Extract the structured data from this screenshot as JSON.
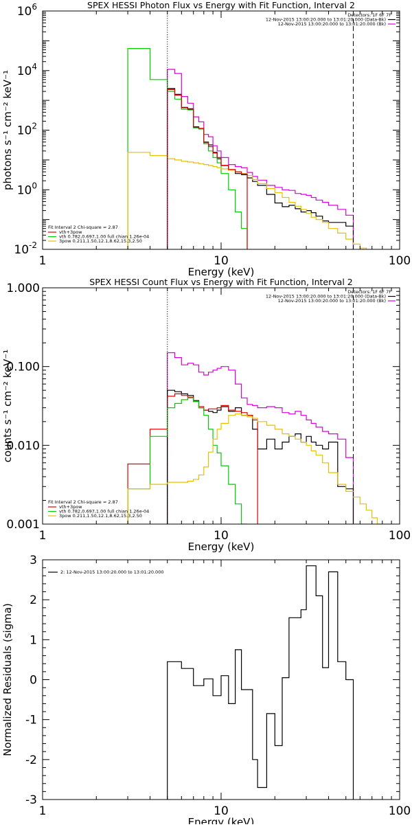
{
  "chart_data": [
    {
      "type": "line",
      "step": true,
      "title": "SPEX HESSI Photon Flux vs Energy with Fit Function, Interval 2",
      "xlabel": "Energy (keV)",
      "ylabel": "photons s⁻¹ cm⁻² keV⁻¹",
      "xscale": "log",
      "yscale": "log",
      "xlim": [
        1,
        100
      ],
      "ylim": [
        0.01,
        1000000
      ],
      "x_tick_labels": [
        "1",
        "10",
        "100"
      ],
      "y_ticks": [
        {
          "base": "10",
          "exp": "-2",
          "value": 0.01
        },
        {
          "base": "10",
          "exp": "0",
          "value": 1
        },
        {
          "base": "10",
          "exp": "2",
          "value": 100
        },
        {
          "base": "10",
          "exp": "4",
          "value": 10000
        },
        {
          "base": "10",
          "exp": "6",
          "value": 1000000
        }
      ],
      "vlines": [
        {
          "x": 5.0,
          "style": "dotted"
        },
        {
          "x": 55.0,
          "style": "dashed"
        }
      ],
      "legend_top": {
        "placement": "top-right",
        "lines": [
          {
            "text": "Detectors: 1F 6F 7F",
            "color": "#000000"
          },
          {
            "text": "12-Nov-2015 13:00:20.000 to 13:01:20.000 (Data-Bk)",
            "color": "#000000"
          },
          {
            "text": "12-Nov-2015 13:00:20.000 to 13:01:20.000 (Bk)",
            "color": "#d800d8"
          }
        ]
      },
      "legend_fit": {
        "placement": "bottom-left",
        "header": "Fit Interval 2   Chi-square = 2.87",
        "entries": [
          {
            "label": "vth+3pow",
            "color": "#dd0000"
          },
          {
            "label": "vth 0.782,0.697,1.00  full chian 1.26e-04",
            "color": "#00cc00"
          },
          {
            "label": "3pow 0.211,1.50,12.1,8.62,15.3,2.50",
            "color": "#e6c000"
          }
        ]
      },
      "series": [
        {
          "color": "#000000",
          "edges": [
            5,
            5.5,
            6,
            6.5,
            7,
            7.5,
            8,
            8.5,
            9,
            9.5,
            10,
            11,
            12,
            13,
            14,
            15,
            16,
            18,
            20,
            22,
            24,
            26,
            28,
            30,
            32,
            34,
            37,
            40,
            45,
            50,
            55
          ],
          "values": [
            2500,
            1600,
            580,
            520,
            130,
            110,
            40,
            32,
            18,
            11,
            6.5,
            4.5,
            3.5,
            3.2,
            2.5,
            1.9,
            1.4,
            0.7,
            0.36,
            0.27,
            0.3,
            0.23,
            0.18,
            0.2,
            0.17,
            0.13,
            0.09,
            0.08,
            0.08,
            0.06
          ]
        },
        {
          "color": "#d800d8",
          "edges": [
            5,
            5.5,
            6,
            6.5,
            7,
            7.5,
            8,
            8.5,
            9,
            9.5,
            10,
            11,
            12,
            13,
            14,
            15,
            16,
            18,
            20,
            22,
            24,
            26,
            28,
            30,
            32,
            34,
            37,
            40,
            45,
            50,
            55
          ],
          "values": [
            11000,
            8000,
            1350,
            800,
            280,
            190,
            72,
            60,
            30,
            20,
            12,
            7,
            6,
            5.5,
            3.8,
            2.8,
            2.1,
            1.4,
            1.2,
            1.0,
            0.95,
            0.75,
            0.7,
            0.65,
            0.55,
            0.45,
            0.38,
            0.3,
            0.22,
            0.14
          ]
        },
        {
          "color": "#00cc00",
          "edges": [
            3,
            4,
            5,
            5.5,
            6,
            6.5,
            7,
            7.5,
            8,
            8.5,
            9,
            9.5,
            10,
            11,
            12,
            13,
            14
          ],
          "values": [
            55000,
            5000,
            2000,
            1100,
            500,
            480,
            120,
            110,
            35,
            20,
            12,
            8,
            3.5,
            1.0,
            0.18,
            0.05
          ]
        },
        {
          "color": "#e6c000",
          "edges": [
            3,
            4,
            5,
            5.5,
            6,
            6.5,
            7,
            7.5,
            8,
            8.5,
            9,
            9.5,
            10,
            11,
            12,
            13,
            14,
            15,
            16,
            18,
            20,
            22,
            24,
            26,
            28,
            30,
            32,
            34,
            37,
            40,
            45,
            50,
            55,
            60,
            65
          ],
          "values": [
            18,
            14,
            11,
            10,
            9,
            8.5,
            8,
            7.5,
            7,
            6.5,
            6,
            5.5,
            5,
            4.5,
            4,
            3.5,
            3,
            2.2,
            1.6,
            1.1,
            0.8,
            0.55,
            0.38,
            0.28,
            0.22,
            0.16,
            0.12,
            0.1,
            0.08,
            0.05,
            0.035,
            0.022,
            0.015,
            0.011
          ]
        },
        {
          "color": "#dd0000",
          "edges": [
            5,
            5.5,
            6,
            6.5,
            7,
            7.5,
            8,
            8.5,
            9,
            9.5,
            10,
            11,
            12,
            13,
            14
          ],
          "values": [
            2300,
            1500,
            560,
            500,
            125,
            115,
            38,
            28,
            17,
            12,
            6.6,
            4.8,
            4,
            3.4
          ]
        }
      ]
    },
    {
      "type": "line",
      "step": true,
      "title": "SPEX HESSI Count Flux vs Energy with Fit Function, Interval 2",
      "xlabel": "Energy (keV)",
      "ylabel": "counts s⁻¹ cm⁻² keV⁻¹",
      "xscale": "log",
      "yscale": "log",
      "xlim": [
        1,
        100
      ],
      "ylim": [
        0.001,
        1
      ],
      "x_tick_labels": [
        "1",
        "10",
        "100"
      ],
      "y_ticks": [
        {
          "label": "0.001",
          "value": 0.001
        },
        {
          "label": "0.010",
          "value": 0.01
        },
        {
          "label": "0.100",
          "value": 0.1
        },
        {
          "label": "1.000",
          "value": 1
        }
      ],
      "vlines": [
        {
          "x": 5.0,
          "style": "dotted"
        },
        {
          "x": 55.0,
          "style": "dashed"
        }
      ],
      "legend_top": {
        "placement": "top-right",
        "lines": [
          {
            "text": "Detectors: 1F 6F 7F",
            "color": "#000000"
          },
          {
            "text": "12-Nov-2015 13:00:20.000 to 13:01:20.000 (Data-Bk)",
            "color": "#000000"
          },
          {
            "text": "12-Nov-2015 13:00:20.000 to 13:01:20.000 (Bk)",
            "color": "#d800d8"
          }
        ]
      },
      "legend_fit": {
        "placement": "bottom-left",
        "header": "Fit Interval 2   Chi-square = 2.87",
        "entries": [
          {
            "label": "vth+3pow",
            "color": "#dd0000"
          },
          {
            "label": "vth 0.782,0.697,1.00  full chian 1.26e-04",
            "color": "#00cc00"
          },
          {
            "label": "3pow 0.211,1.50,12.1,8.62,15.3,2.50",
            "color": "#e6c000"
          }
        ]
      },
      "series": [
        {
          "color": "#d800d8",
          "edges": [
            5,
            5.5,
            6,
            6.5,
            7,
            7.5,
            8,
            8.5,
            9,
            9.5,
            10,
            11,
            12,
            13,
            14,
            15,
            16,
            18,
            20,
            22,
            24,
            26,
            28,
            30,
            32,
            34,
            37,
            40,
            45,
            50,
            55
          ],
          "values": [
            0.15,
            0.13,
            0.105,
            0.11,
            0.105,
            0.085,
            0.078,
            0.085,
            0.09,
            0.095,
            0.1,
            0.09,
            0.06,
            0.04,
            0.033,
            0.032,
            0.03,
            0.031,
            0.03,
            0.026,
            0.025,
            0.027,
            0.024,
            0.021,
            0.019,
            0.017,
            0.015,
            0.014,
            0.012,
            0.007
          ]
        },
        {
          "color": "#000000",
          "edges": [
            5,
            5.5,
            6,
            6.5,
            7,
            7.5,
            8,
            8.5,
            9,
            9.5,
            10,
            11,
            12,
            13,
            14,
            15,
            16,
            18,
            20,
            22,
            24,
            26,
            28,
            30,
            32,
            34,
            37,
            40,
            45,
            50,
            55
          ],
          "values": [
            0.05,
            0.048,
            0.045,
            0.043,
            0.037,
            0.03,
            0.028,
            0.027,
            0.026,
            0.028,
            0.031,
            0.027,
            0.03,
            0.024,
            0.024,
            0.016,
            0.009,
            0.012,
            0.009,
            0.011,
            0.013,
            0.014,
            0.011,
            0.013,
            0.011,
            0.01,
            0.009,
            0.011,
            0.003,
            0.0028
          ]
        },
        {
          "color": "#dd0000",
          "edges": [
            3,
            4,
            5,
            5.5,
            6,
            6.5,
            7,
            7.5,
            8,
            8.5,
            9,
            9.5,
            10,
            11,
            12,
            13,
            14,
            15,
            16
          ],
          "values": [
            0.0058,
            0.016,
            0.042,
            0.045,
            0.043,
            0.041,
            0.036,
            0.031,
            0.028,
            0.029,
            0.029,
            0.03,
            0.032,
            0.028,
            0.027,
            0.026,
            0.024,
            0.021
          ]
        },
        {
          "color": "#00cc00",
          "edges": [
            3,
            4,
            5,
            5.5,
            6,
            6.5,
            7,
            7.5,
            8,
            8.5,
            9,
            9.5,
            10,
            11,
            12,
            13,
            14
          ],
          "values": [
            0.0028,
            0.013,
            0.03,
            0.034,
            0.038,
            0.04,
            0.036,
            0.03,
            0.024,
            0.016,
            0.01,
            0.008,
            0.0055,
            0.0032,
            0.0018,
            0.001
          ]
        },
        {
          "color": "#e6c000",
          "edges": [
            3,
            4,
            5,
            5.5,
            6,
            6.5,
            7,
            7.5,
            8,
            8.5,
            9,
            9.5,
            10,
            11,
            12,
            13,
            14,
            15,
            16,
            18,
            20,
            22,
            24,
            26,
            28,
            30,
            32,
            34,
            37,
            40,
            45,
            50,
            55,
            60,
            65,
            70,
            75,
            80
          ],
          "values": [
            0.0028,
            0.0032,
            0.0034,
            0.0034,
            0.0034,
            0.0035,
            0.0037,
            0.0042,
            0.0053,
            0.0082,
            0.012,
            0.016,
            0.019,
            0.024,
            0.025,
            0.024,
            0.023,
            0.022,
            0.02,
            0.018,
            0.016,
            0.014,
            0.013,
            0.012,
            0.011,
            0.01,
            0.0085,
            0.0075,
            0.006,
            0.0045,
            0.0032,
            0.0026,
            0.0022,
            0.0018,
            0.0015,
            0.0012,
            0.001
          ]
        }
      ]
    },
    {
      "type": "line",
      "step": true,
      "title": "",
      "xlabel": "Energy (keV)",
      "ylabel": "Normalized Residuals (sigma)",
      "xscale": "log",
      "yscale": "linear",
      "xlim": [
        1,
        100
      ],
      "ylim": [
        -3,
        3
      ],
      "x_tick_labels": [
        "1",
        "10",
        "100"
      ],
      "y_tick_labels": [
        "-3",
        "-2",
        "-1",
        "0",
        "1",
        "2",
        "3"
      ],
      "legend": {
        "placement": "top-left",
        "label": "2: 12-Nov-2015 13:00:20.000 to 13:01:20.000",
        "color": "#000000"
      },
      "series": [
        {
          "color": "#000000",
          "edges": [
            5,
            5.5,
            6,
            6.5,
            7,
            7.5,
            8,
            8.5,
            9,
            9.5,
            10,
            11,
            12,
            13,
            14,
            15,
            16,
            18,
            20,
            22,
            24,
            26,
            28,
            30,
            32,
            34,
            37,
            40,
            45,
            50,
            55
          ],
          "values": [
            0.45,
            0.45,
            0.28,
            0.28,
            -0.15,
            -0.15,
            0.02,
            0.02,
            -0.4,
            -0.4,
            0.1,
            -0.6,
            0.75,
            -0.25,
            -0.25,
            -2.0,
            -2.7,
            -0.85,
            -1.65,
            0.05,
            1.55,
            1.55,
            1.75,
            2.85,
            2.85,
            2.1,
            0.3,
            2.7,
            0.45,
            0.0
          ]
        }
      ]
    }
  ]
}
